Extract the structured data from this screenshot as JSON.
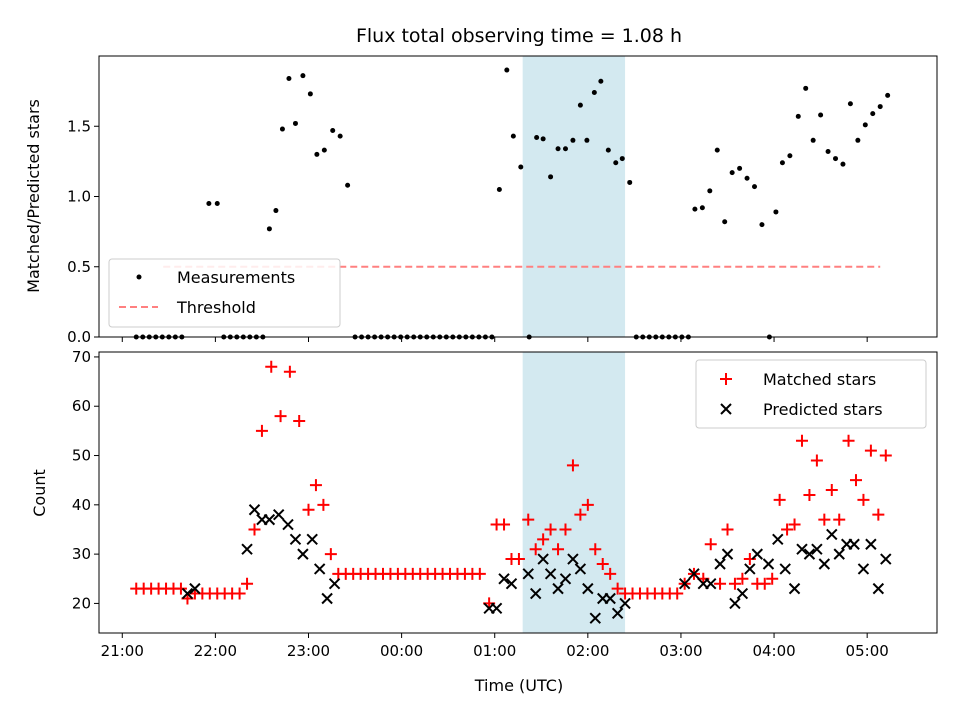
{
  "chart_data": [
    {
      "type": "scatter",
      "title": "Flux total observing time = 1.08 h",
      "xlabel": "",
      "ylabel": "Matched/Predicted stars",
      "xlim": [
        -0.25,
        8.75
      ],
      "ylim": [
        0,
        2.0
      ],
      "yticks": [
        0.0,
        0.5,
        1.0,
        1.5
      ],
      "grid": false,
      "legend_position": "lower-left",
      "highlight_span": [
        4.3,
        5.4
      ],
      "highlight_color": "#d3e9f0",
      "series": [
        {
          "name": "Measurements",
          "color": "#000000",
          "marker": "dot",
          "points": [
            [
              0.15,
              0
            ],
            [
              0.22,
              0
            ],
            [
              0.29,
              0
            ],
            [
              0.36,
              0
            ],
            [
              0.43,
              0
            ],
            [
              0.5,
              0
            ],
            [
              0.57,
              0
            ],
            [
              0.64,
              0
            ],
            [
              0.93,
              0.95
            ],
            [
              1.02,
              0.95
            ],
            [
              1.09,
              0
            ],
            [
              1.16,
              0
            ],
            [
              1.23,
              0
            ],
            [
              1.3,
              0
            ],
            [
              1.37,
              0
            ],
            [
              1.44,
              0
            ],
            [
              1.51,
              0
            ],
            [
              1.58,
              0.77
            ],
            [
              1.65,
              0.9
            ],
            [
              1.72,
              1.48
            ],
            [
              1.79,
              1.84
            ],
            [
              1.86,
              1.52
            ],
            [
              1.94,
              1.86
            ],
            [
              2.02,
              1.73
            ],
            [
              2.09,
              1.3
            ],
            [
              2.17,
              1.33
            ],
            [
              2.26,
              1.47
            ],
            [
              2.34,
              1.43
            ],
            [
              2.42,
              1.08
            ],
            [
              2.5,
              0
            ],
            [
              2.57,
              0
            ],
            [
              2.64,
              0
            ],
            [
              2.71,
              0
            ],
            [
              2.78,
              0
            ],
            [
              2.85,
              0
            ],
            [
              2.92,
              0
            ],
            [
              2.99,
              0
            ],
            [
              3.06,
              0
            ],
            [
              3.13,
              0
            ],
            [
              3.2,
              0
            ],
            [
              3.27,
              0
            ],
            [
              3.34,
              0
            ],
            [
              3.41,
              0
            ],
            [
              3.48,
              0
            ],
            [
              3.55,
              0
            ],
            [
              3.62,
              0
            ],
            [
              3.69,
              0
            ],
            [
              3.76,
              0
            ],
            [
              3.83,
              0
            ],
            [
              3.9,
              0
            ],
            [
              3.97,
              0
            ],
            [
              4.05,
              1.05
            ],
            [
              4.13,
              1.9
            ],
            [
              4.2,
              1.43
            ],
            [
              4.28,
              1.21
            ],
            [
              4.37,
              0
            ],
            [
              4.45,
              1.42
            ],
            [
              4.52,
              1.41
            ],
            [
              4.6,
              1.14
            ],
            [
              4.68,
              1.34
            ],
            [
              4.76,
              1.34
            ],
            [
              4.84,
              1.4
            ],
            [
              4.92,
              1.65
            ],
            [
              4.99,
              1.4
            ],
            [
              5.07,
              1.74
            ],
            [
              5.14,
              1.82
            ],
            [
              5.22,
              1.33
            ],
            [
              5.3,
              1.24
            ],
            [
              5.37,
              1.27
            ],
            [
              5.45,
              1.1
            ],
            [
              5.52,
              0
            ],
            [
              5.59,
              0
            ],
            [
              5.66,
              0
            ],
            [
              5.73,
              0
            ],
            [
              5.8,
              0
            ],
            [
              5.87,
              0
            ],
            [
              5.94,
              0
            ],
            [
              6.01,
              0
            ],
            [
              6.08,
              0
            ],
            [
              6.15,
              0.91
            ],
            [
              6.23,
              0.92
            ],
            [
              6.31,
              1.04
            ],
            [
              6.39,
              1.33
            ],
            [
              6.47,
              0.82
            ],
            [
              6.55,
              1.17
            ],
            [
              6.63,
              1.2
            ],
            [
              6.71,
              1.13
            ],
            [
              6.79,
              1.07
            ],
            [
              6.87,
              0.8
            ],
            [
              6.95,
              0
            ],
            [
              7.02,
              0.89
            ],
            [
              7.09,
              1.24
            ],
            [
              7.17,
              1.29
            ],
            [
              7.26,
              1.57
            ],
            [
              7.34,
              1.77
            ],
            [
              7.42,
              1.4
            ],
            [
              7.5,
              1.58
            ],
            [
              7.58,
              1.32
            ],
            [
              7.66,
              1.27
            ],
            [
              7.74,
              1.23
            ],
            [
              7.82,
              1.66
            ],
            [
              7.9,
              1.4
            ],
            [
              7.98,
              1.51
            ],
            [
              8.06,
              1.59
            ],
            [
              8.14,
              1.64
            ],
            [
              8.22,
              1.72
            ]
          ]
        },
        {
          "name": "Threshold",
          "color": "#ff8080",
          "style": "dashed",
          "points": [
            [
              0.44,
              0.5
            ],
            [
              8.14,
              0.5
            ]
          ]
        }
      ]
    },
    {
      "type": "scatter",
      "title": "",
      "xlabel": "Time (UTC)",
      "ylabel": "Count",
      "xlim": [
        -0.25,
        8.75
      ],
      "ylim": [
        14,
        71
      ],
      "yticks": [
        20,
        30,
        40,
        50,
        60,
        70
      ],
      "xticks": [
        "21:00",
        "22:00",
        "23:00",
        "00:00",
        "01:00",
        "02:00",
        "03:00",
        "04:00",
        "05:00"
      ],
      "grid": false,
      "legend_position": "upper-right",
      "highlight_span": [
        4.3,
        5.4
      ],
      "highlight_color": "#d3e9f0",
      "series": [
        {
          "name": "Matched stars",
          "color": "#ff0000",
          "marker": "plus",
          "points": [
            [
              0.15,
              23
            ],
            [
              0.23,
              23
            ],
            [
              0.31,
              23
            ],
            [
              0.39,
              23
            ],
            [
              0.47,
              23
            ],
            [
              0.55,
              23
            ],
            [
              0.63,
              23
            ],
            [
              0.7,
              21
            ],
            [
              0.78,
              22
            ],
            [
              0.86,
              22
            ],
            [
              0.94,
              22
            ],
            [
              1.02,
              22
            ],
            [
              1.1,
              22
            ],
            [
              1.18,
              22
            ],
            [
              1.26,
              22
            ],
            [
              1.34,
              24
            ],
            [
              1.42,
              35
            ],
            [
              1.5,
              55
            ],
            [
              1.6,
              68
            ],
            [
              1.7,
              58
            ],
            [
              1.8,
              67
            ],
            [
              1.9,
              57
            ],
            [
              2.0,
              39
            ],
            [
              2.08,
              44
            ],
            [
              2.16,
              40
            ],
            [
              2.24,
              30
            ],
            [
              2.32,
              26
            ],
            [
              2.4,
              26
            ],
            [
              2.48,
              26
            ],
            [
              2.56,
              26
            ],
            [
              2.64,
              26
            ],
            [
              2.72,
              26
            ],
            [
              2.8,
              26
            ],
            [
              2.88,
              26
            ],
            [
              2.96,
              26
            ],
            [
              3.04,
              26
            ],
            [
              3.12,
              26
            ],
            [
              3.2,
              26
            ],
            [
              3.28,
              26
            ],
            [
              3.36,
              26
            ],
            [
              3.44,
              26
            ],
            [
              3.52,
              26
            ],
            [
              3.6,
              26
            ],
            [
              3.68,
              26
            ],
            [
              3.76,
              26
            ],
            [
              3.84,
              26
            ],
            [
              3.94,
              20
            ],
            [
              4.02,
              36
            ],
            [
              4.1,
              36
            ],
            [
              4.18,
              29
            ],
            [
              4.26,
              29
            ],
            [
              4.36,
              37
            ],
            [
              4.44,
              31
            ],
            [
              4.52,
              33
            ],
            [
              4.6,
              35
            ],
            [
              4.68,
              31
            ],
            [
              4.76,
              35
            ],
            [
              4.84,
              48
            ],
            [
              4.92,
              38
            ],
            [
              5.0,
              40
            ],
            [
              5.08,
              31
            ],
            [
              5.16,
              28
            ],
            [
              5.24,
              26
            ],
            [
              5.32,
              23
            ],
            [
              5.4,
              22
            ],
            [
              5.48,
              22
            ],
            [
              5.56,
              22
            ],
            [
              5.64,
              22
            ],
            [
              5.72,
              22
            ],
            [
              5.8,
              22
            ],
            [
              5.88,
              22
            ],
            [
              5.96,
              22
            ],
            [
              6.04,
              24
            ],
            [
              6.14,
              26
            ],
            [
              6.24,
              25
            ],
            [
              6.32,
              32
            ],
            [
              6.42,
              24
            ],
            [
              6.5,
              35
            ],
            [
              6.58,
              24
            ],
            [
              6.66,
              25
            ],
            [
              6.74,
              29
            ],
            [
              6.82,
              24
            ],
            [
              6.9,
              24
            ],
            [
              6.98,
              25
            ],
            [
              7.06,
              41
            ],
            [
              7.14,
              35
            ],
            [
              7.22,
              36
            ],
            [
              7.3,
              53
            ],
            [
              7.38,
              42
            ],
            [
              7.46,
              49
            ],
            [
              7.54,
              37
            ],
            [
              7.62,
              43
            ],
            [
              7.7,
              37
            ],
            [
              7.8,
              53
            ],
            [
              7.88,
              45
            ],
            [
              7.96,
              41
            ],
            [
              8.04,
              51
            ],
            [
              8.12,
              38
            ],
            [
              8.2,
              50
            ]
          ]
        },
        {
          "name": "Predicted stars",
          "color": "#000000",
          "marker": "cross",
          "points": [
            [
              0.7,
              22
            ],
            [
              0.78,
              23
            ],
            [
              1.34,
              31
            ],
            [
              1.42,
              39
            ],
            [
              1.5,
              37
            ],
            [
              1.58,
              37
            ],
            [
              1.68,
              38
            ],
            [
              1.78,
              36
            ],
            [
              1.86,
              33
            ],
            [
              1.94,
              30
            ],
            [
              2.04,
              33
            ],
            [
              2.12,
              27
            ],
            [
              2.2,
              21
            ],
            [
              2.28,
              24
            ],
            [
              3.94,
              19
            ],
            [
              4.02,
              19
            ],
            [
              4.1,
              25
            ],
            [
              4.18,
              24
            ],
            [
              4.36,
              26
            ],
            [
              4.44,
              22
            ],
            [
              4.52,
              29
            ],
            [
              4.6,
              26
            ],
            [
              4.68,
              23
            ],
            [
              4.76,
              25
            ],
            [
              4.84,
              29
            ],
            [
              4.92,
              27
            ],
            [
              5.0,
              23
            ],
            [
              5.08,
              17
            ],
            [
              5.16,
              21
            ],
            [
              5.24,
              21
            ],
            [
              5.32,
              18
            ],
            [
              5.4,
              20
            ],
            [
              6.04,
              24
            ],
            [
              6.14,
              26
            ],
            [
              6.24,
              24
            ],
            [
              6.32,
              24
            ],
            [
              6.42,
              28
            ],
            [
              6.5,
              30
            ],
            [
              6.58,
              20
            ],
            [
              6.66,
              22
            ],
            [
              6.74,
              27
            ],
            [
              6.82,
              30
            ],
            [
              6.94,
              28
            ],
            [
              7.04,
              33
            ],
            [
              7.12,
              27
            ],
            [
              7.22,
              23
            ],
            [
              7.3,
              31
            ],
            [
              7.38,
              30
            ],
            [
              7.46,
              31
            ],
            [
              7.54,
              28
            ],
            [
              7.62,
              34
            ],
            [
              7.7,
              30
            ],
            [
              7.78,
              32
            ],
            [
              7.86,
              32
            ],
            [
              7.96,
              27
            ],
            [
              8.04,
              32
            ],
            [
              8.12,
              23
            ],
            [
              8.2,
              29
            ]
          ]
        }
      ]
    }
  ]
}
